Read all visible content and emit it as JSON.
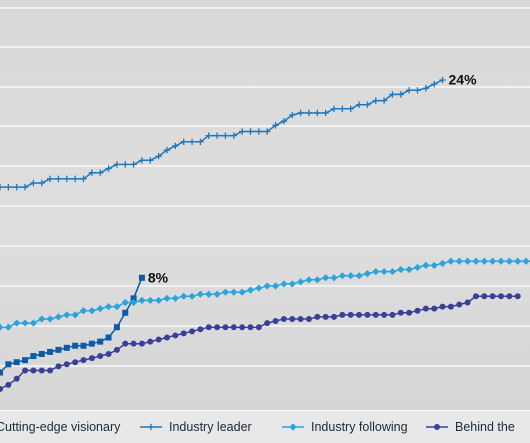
{
  "chart_data": {
    "type": "line",
    "title": "",
    "xlabel": "",
    "ylabel": "",
    "grid": true,
    "legend_position": "bottom",
    "series": [
      {
        "name": "Cutting-edge visionary",
        "legend_label": "Cutting-edge visionary",
        "color": "#0d5aa7",
        "marker": "square",
        "end_label": "8%",
        "values": [
          0.8,
          1.2,
          1.3,
          1.4,
          1.6,
          1.7,
          1.8,
          1.9,
          2.0,
          2.1,
          2.1,
          2.2,
          2.3,
          2.5,
          3.0,
          3.7,
          4.4,
          5.4
        ]
      },
      {
        "name": "Industry leader",
        "legend_label": "Industry leader",
        "color": "#1c78c0",
        "marker": "plus",
        "end_label": "24%",
        "values": [
          9.8,
          9.8,
          9.8,
          9.8,
          10.0,
          10.0,
          10.2,
          10.2,
          10.2,
          10.2,
          10.2,
          10.5,
          10.5,
          10.7,
          10.9,
          10.9,
          10.9,
          11.1,
          11.1,
          11.3,
          11.6,
          11.8,
          12.0,
          12.0,
          12.0,
          12.3,
          12.3,
          12.3,
          12.3,
          12.5,
          12.5,
          12.5,
          12.5,
          12.8,
          13.0,
          13.3,
          13.4,
          13.4,
          13.4,
          13.4,
          13.6,
          13.6,
          13.6,
          13.8,
          13.8,
          14.0,
          14.0,
          14.3,
          14.3,
          14.5,
          14.5,
          14.6,
          14.8,
          15.0
        ]
      },
      {
        "name": "Industry following",
        "legend_label": "Industry following",
        "color": "#2aa4dc",
        "marker": "diamond",
        "end_label": "",
        "values": [
          3.0,
          3.0,
          3.2,
          3.2,
          3.2,
          3.4,
          3.4,
          3.5,
          3.6,
          3.6,
          3.8,
          3.8,
          3.9,
          4.0,
          4.0,
          4.2,
          4.2,
          4.3,
          4.3,
          4.3,
          4.4,
          4.4,
          4.5,
          4.5,
          4.6,
          4.6,
          4.6,
          4.7,
          4.7,
          4.7,
          4.8,
          4.9,
          5.0,
          5.0,
          5.1,
          5.1,
          5.2,
          5.3,
          5.3,
          5.4,
          5.4,
          5.5,
          5.5,
          5.5,
          5.6,
          5.7,
          5.7,
          5.7,
          5.8,
          5.8,
          5.9,
          6.0,
          6.0,
          6.1,
          6.2,
          6.2,
          6.2,
          6.2,
          6.2,
          6.2,
          6.2,
          6.2,
          6.2,
          6.2,
          6.2,
          6.4,
          6.4,
          6.4
        ]
      },
      {
        "name": "Behind the curve",
        "legend_label": "Behind the",
        "color": "#3a3f99",
        "marker": "circle",
        "end_label": "",
        "values": [
          0.0,
          0.2,
          0.5,
          0.9,
          0.9,
          0.9,
          0.9,
          1.1,
          1.2,
          1.3,
          1.4,
          1.5,
          1.6,
          1.7,
          1.9,
          2.2,
          2.2,
          2.2,
          2.3,
          2.4,
          2.5,
          2.6,
          2.7,
          2.8,
          2.9,
          3.0,
          3.0,
          3.0,
          3.0,
          3.0,
          3.0,
          3.0,
          3.2,
          3.3,
          3.4,
          3.4,
          3.4,
          3.4,
          3.5,
          3.5,
          3.5,
          3.6,
          3.6,
          3.6,
          3.6,
          3.6,
          3.6,
          3.6,
          3.7,
          3.7,
          3.8,
          3.9,
          3.9,
          4.0,
          4.0,
          4.1,
          4.2,
          4.5,
          4.5,
          4.5,
          4.5,
          4.5,
          4.5
        ]
      }
    ]
  }
}
